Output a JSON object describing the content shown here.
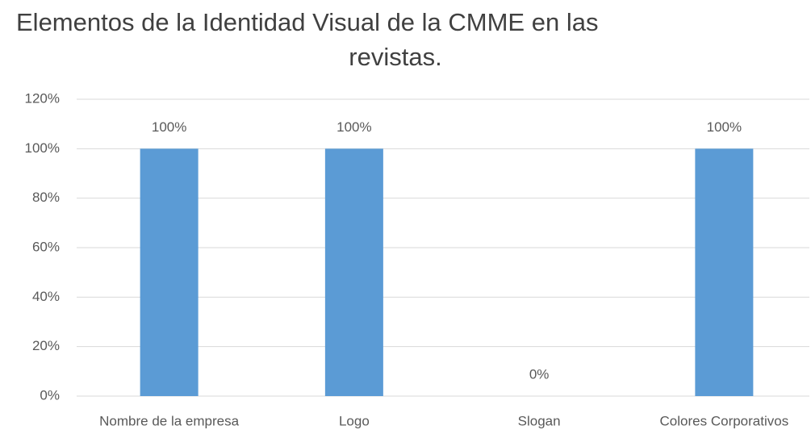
{
  "chart_data": {
    "type": "bar",
    "title": [
      "Elementos de la Identidad Visual de la CMME en las",
      "revistas."
    ],
    "categories": [
      "Nombre de la empresa",
      "Logo",
      "Slogan",
      "Colores Corporativos"
    ],
    "values": [
      100,
      100,
      0,
      100
    ],
    "value_labels": [
      "100%",
      "100%",
      "0%",
      "100%"
    ],
    "color": "#5b9bd5",
    "ylim": [
      0,
      120
    ],
    "yticks": [
      {
        "value": 0,
        "label": "0%"
      },
      {
        "value": 20,
        "label": "20%"
      },
      {
        "value": 40,
        "label": "40%"
      },
      {
        "value": 60,
        "label": "60%"
      },
      {
        "value": 80,
        "label": "80%"
      },
      {
        "value": 100,
        "label": "100%"
      },
      {
        "value": 120,
        "label": "120%"
      }
    ],
    "grid": true
  }
}
